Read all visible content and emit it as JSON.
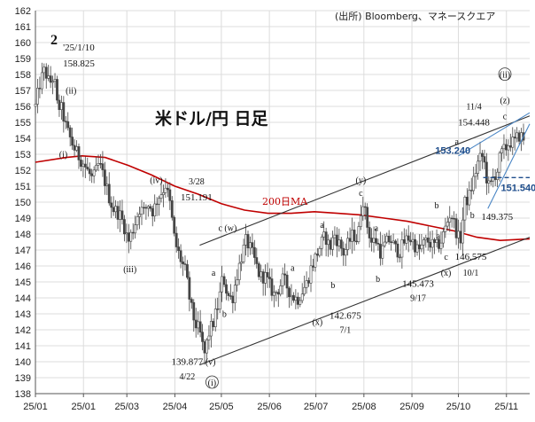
{
  "chart_data": {
    "type": "candlestick",
    "title": "米ドル/円 日足",
    "source": "(出所) Bloomberg、マネースクエア",
    "ylim": [
      138,
      162
    ],
    "yticks": [
      138,
      139,
      140,
      141,
      142,
      143,
      144,
      145,
      146,
      147,
      148,
      149,
      150,
      151,
      152,
      153,
      154,
      155,
      156,
      157,
      158,
      159,
      160,
      161,
      162
    ],
    "xlim": [
      0,
      319
    ],
    "xticks": [
      {
        "x": 0,
        "label": "25/01"
      },
      {
        "x": 31,
        "label": "25/01"
      },
      {
        "x": 59,
        "label": "25/03"
      },
      {
        "x": 90,
        "label": "25/04"
      },
      {
        "x": 120,
        "label": "25/05"
      },
      {
        "x": 151,
        "label": "25/06"
      },
      {
        "x": 181,
        "label": "25/07"
      },
      {
        "x": 212,
        "label": "25/08"
      },
      {
        "x": 243,
        "label": "25/09"
      },
      {
        "x": 273,
        "label": "25/10"
      },
      {
        "x": 304,
        "label": "25/11"
      }
    ],
    "price_path": [
      [
        0,
        156.0
      ],
      [
        3,
        157.5
      ],
      [
        6,
        158.3
      ],
      [
        9,
        157.4
      ],
      [
        12,
        157.9
      ],
      [
        14,
        156.1
      ],
      [
        17,
        155.8
      ],
      [
        20,
        154.6
      ],
      [
        24,
        153.6
      ],
      [
        27,
        153.0
      ],
      [
        30,
        152.6
      ],
      [
        34,
        151.9
      ],
      [
        37,
        151.4
      ],
      [
        41,
        152.4
      ],
      [
        44,
        151.6
      ],
      [
        47,
        150.5
      ],
      [
        50,
        149.6
      ],
      [
        54,
        149.3
      ],
      [
        57,
        148.6
      ],
      [
        60,
        147.5
      ],
      [
        64,
        148.6
      ],
      [
        67,
        149.6
      ],
      [
        70,
        149.4
      ],
      [
        73,
        149.9
      ],
      [
        76,
        149.4
      ],
      [
        79,
        150.3
      ],
      [
        82,
        150.7
      ],
      [
        84,
        151.1
      ],
      [
        87,
        149.8
      ],
      [
        90,
        147.5
      ],
      [
        93,
        146.6
      ],
      [
        97,
        145.6
      ],
      [
        100,
        143.6
      ],
      [
        103,
        142.4
      ],
      [
        106,
        141.9
      ],
      [
        109,
        140.4
      ],
      [
        112,
        141.8
      ],
      [
        115,
        142.5
      ],
      [
        118,
        143.6
      ],
      [
        121,
        145.4
      ],
      [
        124,
        144.2
      ],
      [
        127,
        143.9
      ],
      [
        130,
        145.4
      ],
      [
        133,
        146.6
      ],
      [
        136,
        147.6
      ],
      [
        139,
        147.0
      ],
      [
        142,
        146.2
      ],
      [
        145,
        145.3
      ],
      [
        148,
        145.4
      ],
      [
        151,
        144.8
      ],
      [
        154,
        144.2
      ],
      [
        157,
        144.6
      ],
      [
        160,
        145.2
      ],
      [
        163,
        144.6
      ],
      [
        166,
        144.1
      ],
      [
        169,
        143.9
      ],
      [
        172,
        144.4
      ],
      [
        175,
        144.9
      ],
      [
        178,
        145.9
      ],
      [
        181,
        146.6
      ],
      [
        184,
        147.3
      ],
      [
        187,
        147.9
      ],
      [
        190,
        147.1
      ],
      [
        193,
        148.0
      ],
      [
        196,
        147.4
      ],
      [
        199,
        146.8
      ],
      [
        202,
        147.4
      ],
      [
        205,
        148.0
      ],
      [
        208,
        147.6
      ],
      [
        211,
        150.4
      ],
      [
        214,
        148.6
      ],
      [
        217,
        147.5
      ],
      [
        220,
        147.6
      ],
      [
        223,
        146.8
      ],
      [
        226,
        147.4
      ],
      [
        229,
        147.7
      ],
      [
        232,
        147.1
      ],
      [
        235,
        146.9
      ],
      [
        238,
        147.5
      ],
      [
        241,
        147.8
      ],
      [
        244,
        147.5
      ],
      [
        247,
        146.9
      ],
      [
        250,
        147.3
      ],
      [
        253,
        147.6
      ],
      [
        256,
        147.3
      ],
      [
        259,
        147.2
      ],
      [
        262,
        147.6
      ],
      [
        265,
        148.5
      ],
      [
        268,
        149.4
      ],
      [
        271,
        148.4
      ],
      [
        274,
        147.4
      ],
      [
        277,
        149.9
      ],
      [
        280,
        150.4
      ],
      [
        283,
        151.5
      ],
      [
        286,
        152.6
      ],
      [
        289,
        152.9
      ],
      [
        291,
        151.6
      ],
      [
        293,
        150.8
      ],
      [
        296,
        151.7
      ],
      [
        298,
        151.9
      ],
      [
        300,
        152.9
      ],
      [
        303,
        153.3
      ],
      [
        306,
        153.8
      ],
      [
        309,
        153.7
      ],
      [
        312,
        154.2
      ],
      [
        315,
        154.0
      ]
    ],
    "moving_average": {
      "name": "200日MA",
      "points": [
        [
          0,
          152.5
        ],
        [
          20,
          152.8
        ],
        [
          30,
          152.9
        ],
        [
          45,
          152.8
        ],
        [
          60,
          152.3
        ],
        [
          75,
          151.7
        ],
        [
          90,
          151.0
        ],
        [
          105,
          150.5
        ],
        [
          120,
          149.9
        ],
        [
          135,
          149.5
        ],
        [
          150,
          149.3
        ],
        [
          165,
          149.3
        ],
        [
          180,
          149.4
        ],
        [
          195,
          149.3
        ],
        [
          210,
          149.2
        ],
        [
          225,
          149.0
        ],
        [
          240,
          148.8
        ],
        [
          255,
          148.5
        ],
        [
          270,
          148.2
        ],
        [
          285,
          147.8
        ],
        [
          300,
          147.6
        ],
        [
          319,
          147.7
        ]
      ]
    },
    "trend_lines": [
      {
        "from": [
          106,
          147.3
        ],
        "to": [
          319,
          155.4
        ],
        "color": "#333333"
      },
      {
        "from": [
          106,
          139.8
        ],
        "to": [
          319,
          147.8
        ],
        "color": "#333333"
      },
      {
        "from": [
          292,
          149.6
        ],
        "to": [
          319,
          154.9
        ],
        "color": "#4a86c5"
      },
      {
        "from": [
          273,
          152.9
        ],
        "to": [
          319,
          155.6
        ],
        "color": "#4a86c5"
      }
    ],
    "support_lines": [
      {
        "y": 151.54,
        "x_from": 289,
        "x_to": 319,
        "label": "151.540",
        "color": "#1f4e8c"
      },
      {
        "y": 153.24,
        "label": "153.240",
        "color": "#1f4e8c"
      }
    ],
    "annotations": [
      {
        "text": "2",
        "x": 12,
        "y": 159.9,
        "style": "big"
      },
      {
        "text": "'25/1/10",
        "x": 28,
        "y": 159.5
      },
      {
        "text": "158.825",
        "x": 28,
        "y": 158.5
      },
      {
        "text": "(ii)",
        "x": 23,
        "y": 156.8
      },
      {
        "text": "(i)",
        "x": 18,
        "y": 152.8
      },
      {
        "text": "(iv)",
        "x": 78,
        "y": 151.2
      },
      {
        "text": "3/28",
        "x": 104,
        "y": 151.1
      },
      {
        "text": "151.191",
        "x": 104,
        "y": 150.1
      },
      {
        "text": "(iii)",
        "x": 61,
        "y": 145.6
      },
      {
        "text": "c (w)",
        "x": 124,
        "y": 148.2
      },
      {
        "text": "a",
        "x": 115,
        "y": 145.4
      },
      {
        "text": "b",
        "x": 122,
        "y": 142.8
      },
      {
        "text": "(y)",
        "x": 210,
        "y": 151.2
      },
      {
        "text": "c",
        "x": 210,
        "y": 150.4
      },
      {
        "text": "a",
        "x": 185,
        "y": 148.4
      },
      {
        "text": "b",
        "x": 192,
        "y": 144.6
      },
      {
        "text": "a",
        "x": 166,
        "y": 145.7
      },
      {
        "text": "a",
        "x": 220,
        "y": 148.2
      },
      {
        "text": "b",
        "x": 221,
        "y": 145.0
      },
      {
        "text": "(x)",
        "x": 182,
        "y": 142.3
      },
      {
        "text": "142.675",
        "x": 200,
        "y": 142.7
      },
      {
        "text": "7/1",
        "x": 200,
        "y": 141.8
      },
      {
        "text": "145.473",
        "x": 247,
        "y": 144.7
      },
      {
        "text": "9/17",
        "x": 247,
        "y": 143.8
      },
      {
        "text": "(v)",
        "x": 113,
        "y": 139.8
      },
      {
        "text": "139.877",
        "x": 98,
        "y": 139.8
      },
      {
        "text": "4/22",
        "x": 98,
        "y": 138.9
      },
      {
        "text": "(i)",
        "x": 114,
        "y": 138.5,
        "style": "circle"
      },
      {
        "text": "b",
        "x": 259,
        "y": 149.6
      },
      {
        "text": "a",
        "x": 260,
        "y": 147.7
      },
      {
        "text": "c",
        "x": 265,
        "y": 146.4
      },
      {
        "text": "146.575",
        "x": 281,
        "y": 146.4
      },
      {
        "text": "(x)",
        "x": 265,
        "y": 145.4
      },
      {
        "text": "10/1",
        "x": 281,
        "y": 145.4
      },
      {
        "text": "a",
        "x": 272,
        "y": 153.6
      },
      {
        "text": "b",
        "x": 282,
        "y": 149.0
      },
      {
        "text": "149.375",
        "x": 298,
        "y": 148.9
      },
      {
        "text": "11/4",
        "x": 283,
        "y": 155.8
      },
      {
        "text": "154.448",
        "x": 283,
        "y": 154.8
      },
      {
        "text": "c",
        "x": 303,
        "y": 155.2
      },
      {
        "text": "(z)",
        "x": 303,
        "y": 156.2
      },
      {
        "text": "(ii)",
        "x": 303,
        "y": 157.8,
        "style": "circle"
      }
    ]
  }
}
